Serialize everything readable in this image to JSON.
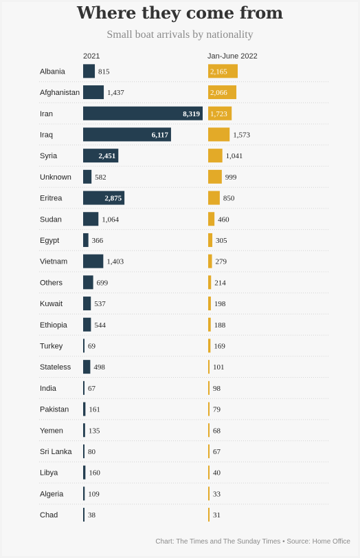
{
  "title": "Where they come from",
  "subtitle": "Small boat arrivals by nationality",
  "columns": {
    "left": "2021",
    "right": "Jan-June 2022"
  },
  "source": "Chart: The Times and The Sunday Times • Source: Home Office",
  "colors": {
    "series_2021": "#243e50",
    "series_2022": "#e3aa28"
  },
  "chart_data": {
    "type": "bar",
    "orientation": "horizontal",
    "categories": [
      "Albania",
      "Afghanistan",
      "Iran",
      "Iraq",
      "Syria",
      "Unknown",
      "Eritrea",
      "Sudan",
      "Egypt",
      "Vietnam",
      "Others",
      "Kuwait",
      "Ethiopia",
      "Turkey",
      "Stateless",
      "India",
      "Pakistan",
      "Yemen",
      "Sri Lanka",
      "Libya",
      "Algeria",
      "Chad"
    ],
    "series": [
      {
        "name": "2021",
        "values": [
          815,
          1437,
          8319,
          6117,
          2451,
          582,
          2875,
          1064,
          366,
          1403,
          699,
          537,
          544,
          69,
          498,
          67,
          161,
          135,
          80,
          160,
          109,
          38
        ],
        "labels": [
          "815",
          "1,437",
          "8,319",
          "6,117",
          "2,451",
          "582",
          "2,875",
          "1,064",
          "366",
          "1,403",
          "699",
          "537",
          "544",
          "69",
          "498",
          "67",
          "161",
          "135",
          "80",
          "160",
          "109",
          "38"
        ]
      },
      {
        "name": "Jan-June 2022",
        "values": [
          2165,
          2066,
          1723,
          1573,
          1041,
          999,
          850,
          460,
          305,
          279,
          214,
          198,
          188,
          169,
          101,
          98,
          79,
          68,
          67,
          40,
          33,
          31
        ],
        "labels": [
          "2,165",
          "2,066",
          "1,723",
          "1,573",
          "1,041",
          "999",
          "850",
          "460",
          "305",
          "279",
          "214",
          "198",
          "188",
          "169",
          "101",
          "98",
          "79",
          "68",
          "67",
          "40",
          "33",
          "31"
        ]
      }
    ],
    "xlim_2021": [
      0,
      8319
    ],
    "xlim_2022": [
      0,
      2165
    ],
    "grid": false
  }
}
